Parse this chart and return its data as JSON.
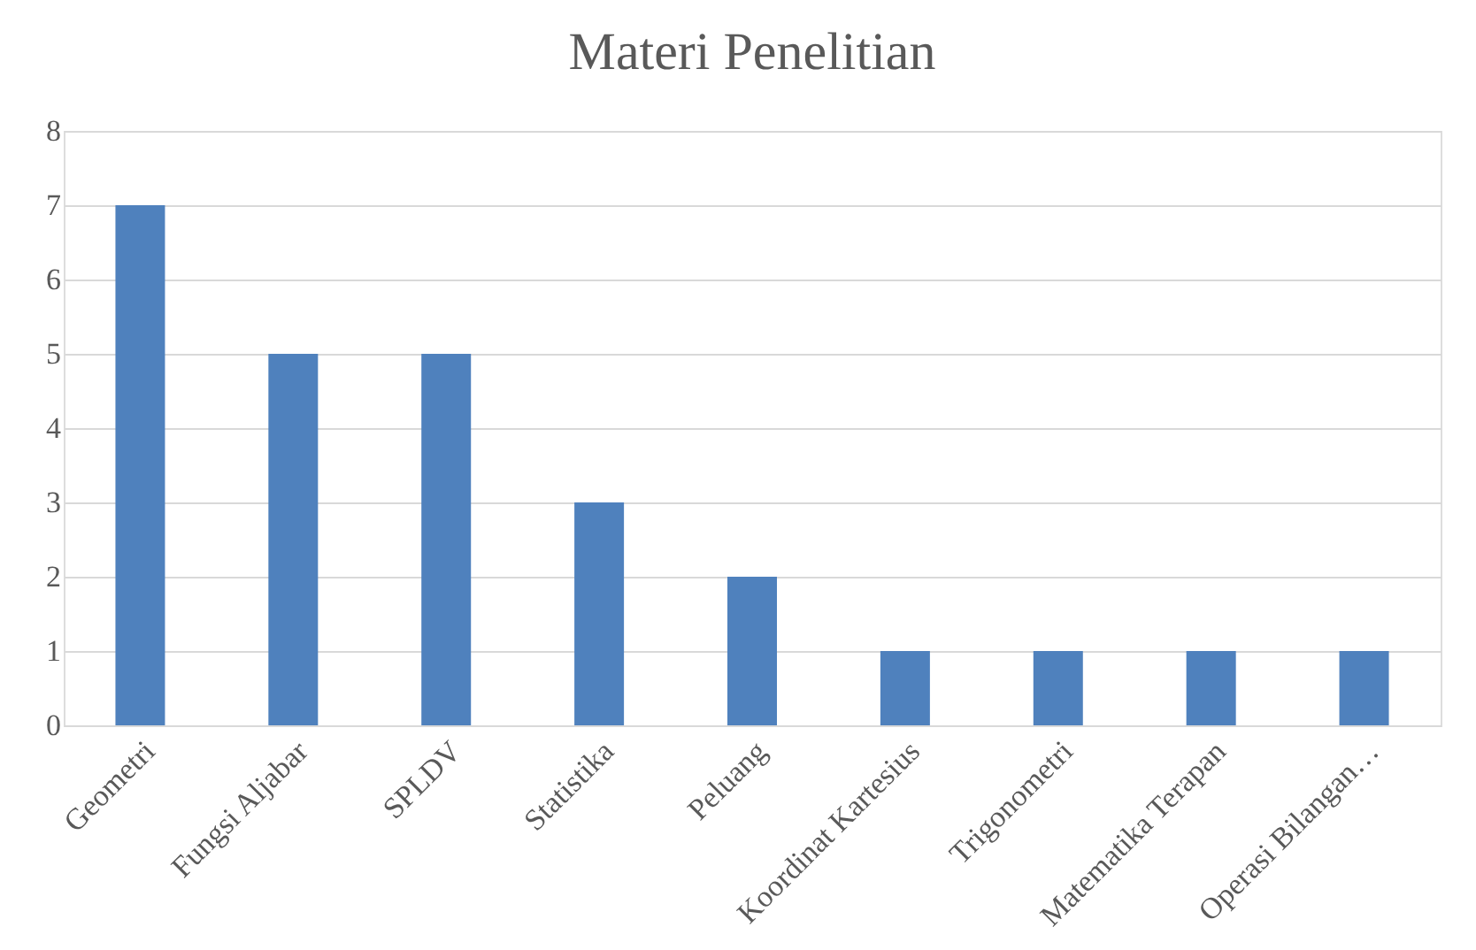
{
  "chart_data": {
    "type": "bar",
    "title": "Materi Penelitian",
    "categories": [
      "Geometri",
      "Fungsi Aljabar",
      "SPLDV",
      "Statistika",
      "Peluang",
      "Koordinat Kartesius",
      "Trigonometri",
      "Matematika Terapan",
      "Operasi Bilangan…"
    ],
    "values": [
      7,
      5,
      5,
      3,
      2,
      1,
      1,
      1,
      1
    ],
    "color": "#4f81bd",
    "ylim": [
      0,
      8
    ],
    "yticks": [
      0,
      1,
      2,
      3,
      4,
      5,
      6,
      7,
      8
    ],
    "grid": "y"
  }
}
